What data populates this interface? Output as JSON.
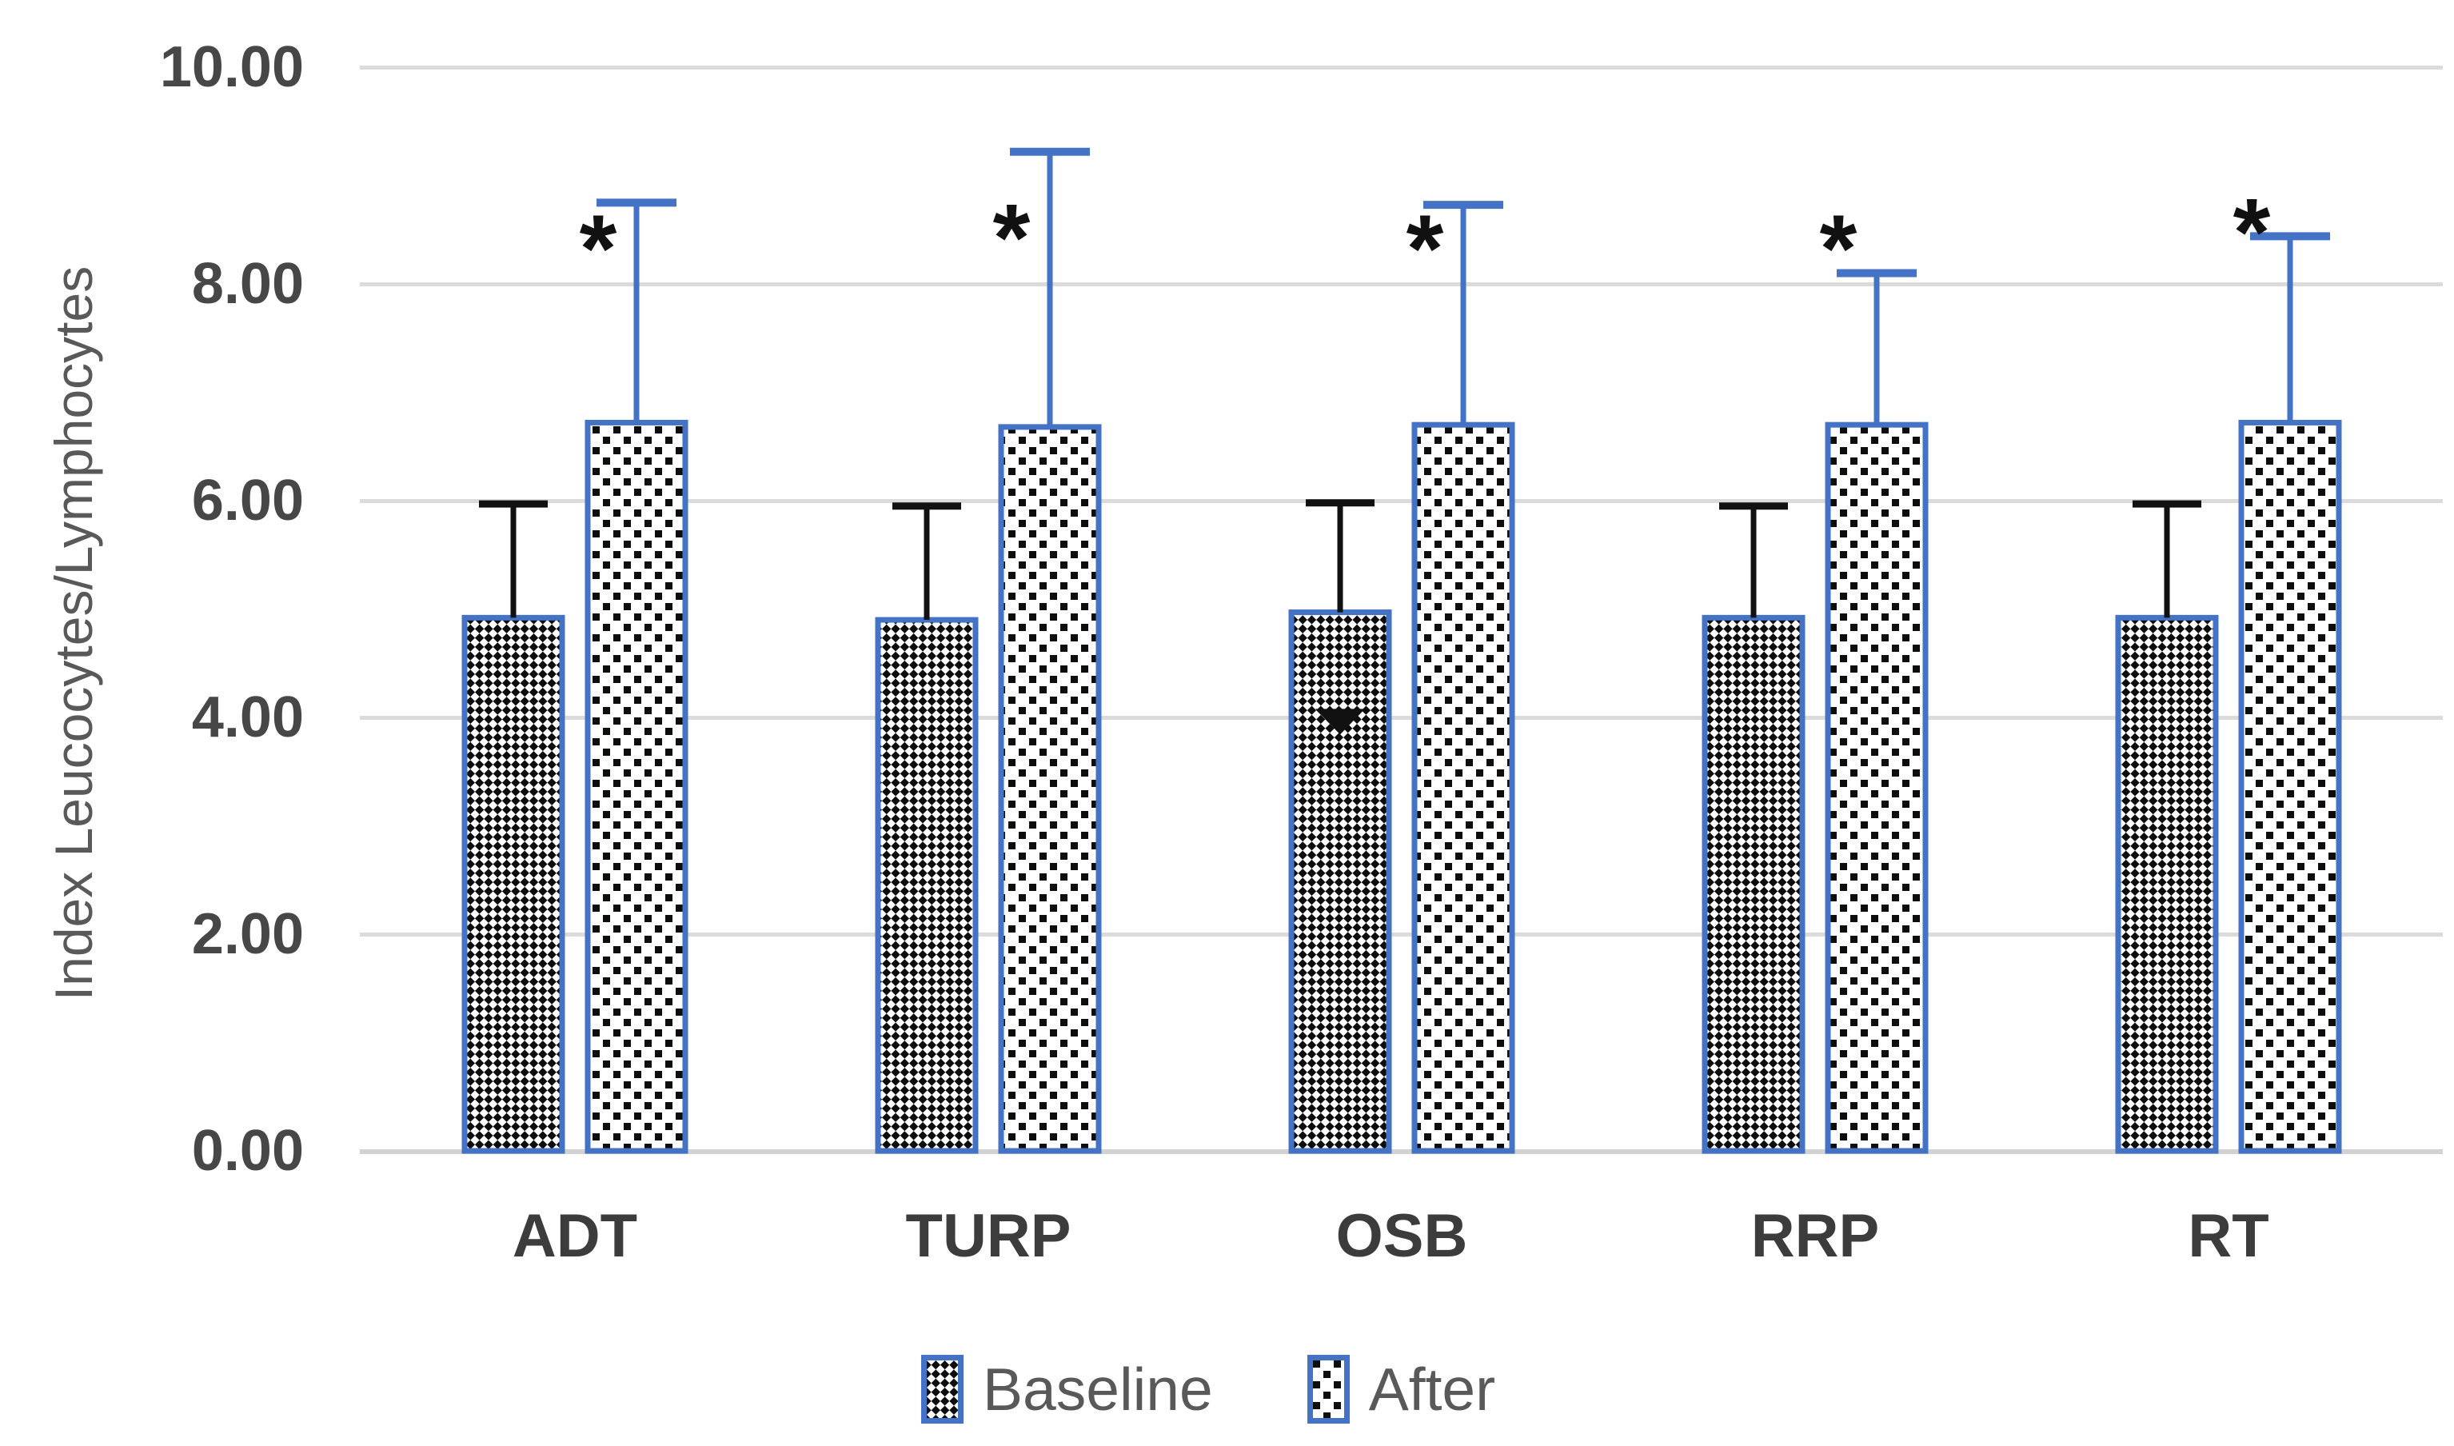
{
  "figure": {
    "background": "#ffffff",
    "colors": {
      "bar_border": "#4472C4",
      "after_error": "#4472C4",
      "baseline_error": "#111111",
      "pattern_black": "#0d0d0d",
      "pattern_white": "#ffffff",
      "gridline": "#DBDBDB",
      "axis_line": "#D2D2D2",
      "tick_text": "#474747",
      "category_text": "#3c3c3c",
      "legend_text": "#595959",
      "marker_color": "#111111"
    }
  },
  "chart_data": {
    "type": "bar",
    "title": "",
    "xlabel": "",
    "ylabel": "Index Leucocytes/Lymphocytes",
    "categories": [
      "ADT",
      "TURP",
      "OSB",
      "RRP",
      "RT"
    ],
    "ylim": [
      0,
      10
    ],
    "ytick_values": [
      0,
      2,
      4,
      6,
      8,
      10
    ],
    "ytick_labels": [
      "0.00",
      "2.00",
      "4.00",
      "6.00",
      "8.00",
      "10.00"
    ],
    "grid": true,
    "legend_position": "bottom-center",
    "series": [
      {
        "name": "Baseline",
        "pattern": "checker",
        "values": [
          4.92,
          4.9,
          4.97,
          4.92,
          4.92
        ],
        "error_upper": [
          1.05,
          1.05,
          1.01,
          1.03,
          1.05
        ],
        "error_lower_visible": [
          null,
          null,
          0.98,
          null,
          null
        ]
      },
      {
        "name": "After",
        "pattern": "diagonal-dash",
        "values": [
          6.72,
          6.68,
          6.7,
          6.7,
          6.72
        ],
        "error_upper": [
          2.03,
          2.54,
          2.03,
          1.4,
          1.72
        ]
      }
    ],
    "significance_markers": [
      {
        "category": "ADT",
        "symbol": "*",
        "y": 8.45
      },
      {
        "category": "TURP",
        "symbol": "*",
        "y": 8.55
      },
      {
        "category": "OSB",
        "symbol": "*",
        "y": 8.45
      },
      {
        "category": "RRP",
        "symbol": "*",
        "y": 8.45
      },
      {
        "category": "RT",
        "symbol": "*",
        "y": 8.6
      }
    ]
  }
}
